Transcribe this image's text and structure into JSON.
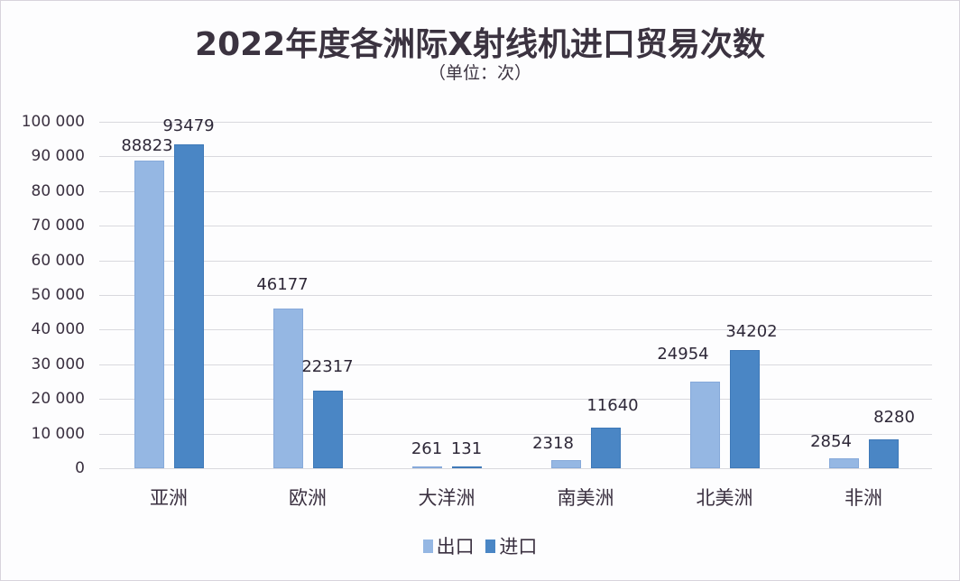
{
  "chart_data": {
    "type": "bar",
    "title": "2022年度各洲际X射线机进口贸易次数",
    "subtitle": "（单位：次）",
    "xlabel": "",
    "ylabel": "",
    "ylim": [
      0,
      100000
    ],
    "yticks": [
      "0",
      "10000",
      "20000",
      "30000",
      "40000",
      "50000",
      "60000",
      "70000",
      "80000",
      "90000",
      "100000"
    ],
    "grid": true,
    "legend_position": "bottom",
    "categories": [
      "亚洲",
      "欧洲",
      "大洋洲",
      "南美洲",
      "北美洲",
      "非洲"
    ],
    "series": [
      {
        "name": "出口",
        "color": "#95b7e3",
        "values": [
          88823,
          46177,
          261,
          2318,
          24954,
          2854
        ]
      },
      {
        "name": "进口",
        "color": "#4a86c5",
        "values": [
          93479,
          22317,
          131,
          11640,
          34202,
          8280
        ]
      }
    ]
  },
  "header": {
    "title": "2022年度各洲际X射线机进口贸易次数",
    "subtitle": "（单位：次）"
  },
  "axis": {
    "yticks": [
      "0",
      "10 000",
      "20 000",
      "30 000",
      "40 000",
      "50 000",
      "60 000",
      "70 000",
      "80 000",
      "90 000",
      "100 000"
    ],
    "categories": [
      "亚洲",
      "欧洲",
      "大洋洲",
      "南美洲",
      "北美洲",
      "非洲"
    ]
  },
  "labels": {
    "export": [
      "88823",
      "46177",
      "261",
      "2318",
      "24954",
      "2854"
    ],
    "import": [
      "93479",
      "22317",
      "131",
      "11640",
      "34202",
      "8280"
    ]
  },
  "legend": {
    "items": [
      {
        "label": "出口",
        "color": "#95b7e3"
      },
      {
        "label": "进口",
        "color": "#4a86c5"
      }
    ]
  }
}
